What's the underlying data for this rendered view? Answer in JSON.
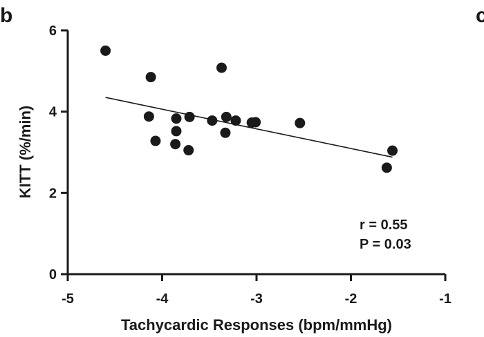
{
  "panel": {
    "label": "b",
    "right_edge_label": "c"
  },
  "chart_data": {
    "type": "scatter",
    "xlabel": "Tachycardic Responses (bpm/mmHg)",
    "ylabel": "KITT (%/min)",
    "xlim": [
      -5,
      -1
    ],
    "ylim": [
      0,
      6
    ],
    "xticks": [
      "-5",
      "-4",
      "-3",
      "-2",
      "-1"
    ],
    "yticks": [
      "0",
      "2",
      "4",
      "6"
    ],
    "points": [
      {
        "x": -4.6,
        "y": 5.5
      },
      {
        "x": -4.12,
        "y": 4.85
      },
      {
        "x": -4.14,
        "y": 3.88
      },
      {
        "x": -4.07,
        "y": 3.28
      },
      {
        "x": -3.85,
        "y": 3.83
      },
      {
        "x": -3.85,
        "y": 3.52
      },
      {
        "x": -3.86,
        "y": 3.2
      },
      {
        "x": -3.71,
        "y": 3.87
      },
      {
        "x": -3.72,
        "y": 3.05
      },
      {
        "x": -3.47,
        "y": 3.78
      },
      {
        "x": -3.37,
        "y": 5.08
      },
      {
        "x": -3.32,
        "y": 3.87
      },
      {
        "x": -3.33,
        "y": 3.48
      },
      {
        "x": -3.22,
        "y": 3.78
      },
      {
        "x": -3.05,
        "y": 3.73
      },
      {
        "x": -3.01,
        "y": 3.74
      },
      {
        "x": -2.54,
        "y": 3.72
      },
      {
        "x": -1.62,
        "y": 2.62
      },
      {
        "x": -1.56,
        "y": 3.04
      }
    ],
    "fit_line": {
      "x": [
        -4.6,
        -1.56
      ],
      "y": [
        4.35,
        2.88
      ]
    },
    "annotations": [
      "r = 0.55",
      "P = 0.03"
    ],
    "grid": false,
    "legend": "none"
  }
}
